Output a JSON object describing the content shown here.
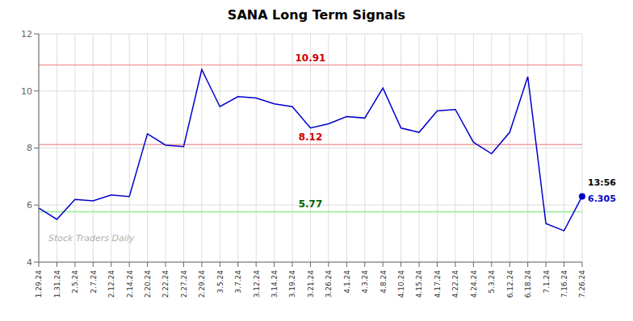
{
  "chart_data": {
    "type": "line",
    "title": "SANA Long Term Signals",
    "categories": [
      "1.29.24",
      "1.31.24",
      "2.5.24",
      "2.7.24",
      "2.12.24",
      "2.14.24",
      "2.20.24",
      "2.22.24",
      "2.27.24",
      "2.29.24",
      "3.5.24",
      "3.7.24",
      "3.12.24",
      "3.14.24",
      "3.19.24",
      "3.21.24",
      "3.26.24",
      "4.1.24",
      "4.3.24",
      "4.8.24",
      "4.10.24",
      "4.15.24",
      "4.17.24",
      "4.22.24",
      "4.24.24",
      "5.3.24",
      "6.12.24",
      "6.18.24",
      "7.1.24",
      "7.16.24",
      "7.26.24"
    ],
    "values": [
      5.9,
      5.5,
      6.2,
      6.15,
      6.35,
      6.3,
      8.5,
      8.1,
      8.05,
      10.75,
      9.45,
      9.8,
      9.75,
      9.55,
      9.45,
      8.7,
      8.85,
      9.1,
      9.05,
      10.1,
      8.7,
      8.55,
      9.3,
      9.35,
      8.2,
      7.8,
      8.55,
      10.5,
      5.35,
      5.1,
      6.305
    ],
    "color": "#0000cc",
    "marker": "last",
    "ylim": [
      4,
      12
    ],
    "yticks": [
      4,
      6,
      8,
      10,
      12
    ],
    "grid": true,
    "reference_lines": [
      {
        "value": 10.91,
        "label": "10.91",
        "color": "#f4a0a0",
        "label_color": "#cc0000"
      },
      {
        "value": 8.12,
        "label": "8.12",
        "color": "#f4a0a0",
        "label_color": "#cc0000"
      },
      {
        "value": 5.77,
        "label": "5.77",
        "color": "#90ee90",
        "label_color": "#006600"
      }
    ],
    "last_point_labels": [
      {
        "text": "13:56",
        "color": "#000000"
      },
      {
        "text": "6.305",
        "color": "#0000cc"
      }
    ],
    "watermark": "Stock Traders Daily"
  }
}
